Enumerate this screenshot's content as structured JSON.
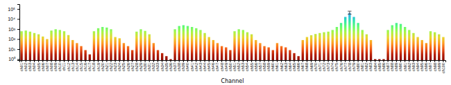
{
  "chart_data": {
    "type": "bar",
    "xlabel": "Channel",
    "categories": [
      "ch01",
      "ch02",
      "ch03",
      "ch04",
      "ch05",
      "ch06",
      "ch07",
      "ch08",
      "ch09",
      "ch10",
      "ch11",
      "ch12",
      "ch13",
      "ch14",
      "ch15",
      "ch16",
      "ch17",
      "ch18",
      "ch19",
      "ch20",
      "ch21",
      "ch22",
      "ch23",
      "ch24",
      "ch25",
      "ch26",
      "ch27",
      "ch28",
      "ch29",
      "ch30",
      "ch31",
      "ch32",
      "ch33",
      "ch34",
      "ch35",
      "ch36",
      "ch37",
      "ch38",
      "ch39",
      "ch40",
      "ch41",
      "ch42",
      "ch43",
      "ch44",
      "ch45",
      "ch46",
      "ch47",
      "ch48",
      "ch49",
      "ch50",
      "ch51",
      "ch52",
      "ch53",
      "ch54",
      "ch55",
      "ch56",
      "ch57",
      "ch58",
      "ch59",
      "ch60",
      "ch61",
      "ch62",
      "ch63",
      "ch64",
      "ch65",
      "ch66",
      "ch67",
      "ch68",
      "ch69",
      "ch70",
      "ch71",
      "ch72",
      "ch73",
      "ch74",
      "ch75",
      "ch76",
      "ch77",
      "ch78",
      "ch79",
      "ch80",
      "ch81",
      "ch82",
      "ch83",
      "ch84",
      "ch85",
      "ch86",
      "ch87",
      "ch88",
      "ch89",
      "ch90",
      "ch91",
      "ch92",
      "ch93",
      "ch94",
      "ch95",
      "ch96",
      "ch97",
      "ch98",
      "ch99",
      "ch100"
    ],
    "values": [
      600,
      700,
      550,
      400,
      300,
      180,
      100,
      700,
      950,
      800,
      600,
      250,
      80,
      40,
      20,
      8,
      3,
      600,
      1200,
      1600,
      1400,
      950,
      160,
      120,
      40,
      20,
      8,
      550,
      950,
      650,
      300,
      40,
      8,
      4,
      2,
      1,
      950,
      2000,
      2400,
      2000,
      1600,
      1200,
      800,
      400,
      160,
      80,
      40,
      20,
      15,
      8,
      600,
      950,
      800,
      480,
      300,
      80,
      40,
      20,
      15,
      8,
      40,
      20,
      15,
      8,
      4,
      2,
      80,
      160,
      240,
      320,
      400,
      480,
      550,
      800,
      1600,
      4000,
      16000,
      40000,
      16000,
      4000,
      800,
      300,
      80,
      1,
      1,
      1,
      800,
      2400,
      4000,
      3200,
      1600,
      800,
      400,
      160,
      80,
      40,
      600,
      480,
      300,
      160
    ],
    "error_bar": {
      "category": "ch78",
      "value": 40000,
      "low": 30000,
      "high": 60000
    },
    "log": "y",
    "ylim": [
      0.8,
      300000
    ],
    "yticks": [
      {
        "value": 1,
        "label": "10⁰"
      },
      {
        "value": 10,
        "label": "10¹"
      },
      {
        "value": 100,
        "label": "10²"
      },
      {
        "value": 1000,
        "label": "10³"
      },
      {
        "value": 10000,
        "label": "10⁴"
      },
      {
        "value": 100000,
        "label": "10⁵"
      }
    ],
    "grid": false
  }
}
